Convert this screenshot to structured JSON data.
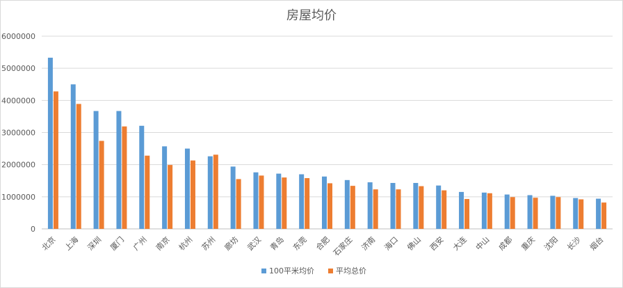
{
  "chart_data": {
    "type": "bar",
    "title": "房屋均价",
    "categories": [
      "北京",
      "上海",
      "深圳",
      "厦门",
      "广州",
      "南京",
      "杭州",
      "苏州",
      "廊坊",
      "武汉",
      "青岛",
      "东莞",
      "合肥",
      "石家庄",
      "济南",
      "海口",
      "佛山",
      "西安",
      "大连",
      "中山",
      "成都",
      "重庆",
      "沈阳",
      "长沙",
      "烟台"
    ],
    "series": [
      {
        "name": "100平米均价",
        "color": "#5b9bd5",
        "values": [
          5330000,
          4500000,
          3670000,
          3670000,
          3210000,
          2570000,
          2500000,
          2260000,
          1940000,
          1760000,
          1720000,
          1700000,
          1630000,
          1520000,
          1450000,
          1430000,
          1430000,
          1350000,
          1150000,
          1130000,
          1070000,
          1050000,
          1030000,
          960000,
          940000
        ]
      },
      {
        "name": "平均总价",
        "color": "#ed7d31",
        "values": [
          4280000,
          3890000,
          2740000,
          3190000,
          2280000,
          1990000,
          2130000,
          2310000,
          1550000,
          1660000,
          1600000,
          1580000,
          1420000,
          1340000,
          1230000,
          1230000,
          1330000,
          1200000,
          930000,
          1110000,
          990000,
          970000,
          990000,
          920000,
          820000
        ]
      }
    ],
    "yticks": [
      "0",
      "1000000",
      "2000000",
      "3000000",
      "4000000",
      "5000000",
      "6000000"
    ],
    "ylim": [
      0,
      6000000
    ],
    "grid": true,
    "legend_position": "bottom"
  }
}
